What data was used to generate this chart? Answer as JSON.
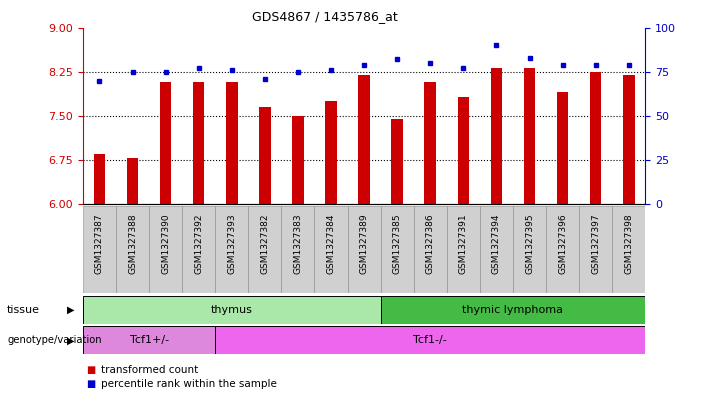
{
  "title": "GDS4867 / 1435786_at",
  "samples": [
    "GSM1327387",
    "GSM1327388",
    "GSM1327390",
    "GSM1327392",
    "GSM1327393",
    "GSM1327382",
    "GSM1327383",
    "GSM1327384",
    "GSM1327389",
    "GSM1327385",
    "GSM1327386",
    "GSM1327391",
    "GSM1327394",
    "GSM1327395",
    "GSM1327396",
    "GSM1327397",
    "GSM1327398"
  ],
  "bar_values": [
    6.85,
    6.78,
    8.07,
    8.08,
    8.08,
    7.65,
    7.5,
    7.75,
    8.2,
    7.45,
    8.08,
    7.82,
    8.32,
    8.32,
    7.9,
    8.25,
    8.2
  ],
  "dot_values": [
    70,
    75,
    75,
    77,
    76,
    71,
    75,
    76,
    79,
    82,
    80,
    77,
    90,
    83,
    79,
    79,
    79
  ],
  "ylim_left": [
    6.0,
    9.0
  ],
  "ylim_right": [
    0,
    100
  ],
  "yticks_left": [
    6.0,
    6.75,
    7.5,
    8.25,
    9.0
  ],
  "yticks_right": [
    0,
    25,
    50,
    75,
    100
  ],
  "dotted_line_values": [
    6.75,
    7.5,
    8.25
  ],
  "bar_color": "#cc0000",
  "dot_color": "#0000cc",
  "tick_color_left": "#cc0000",
  "tick_color_right": "#0000cc",
  "tissue_groups": [
    {
      "label": "thymus",
      "start": 0,
      "end": 9,
      "color": "#aae8aa"
    },
    {
      "label": "thymic lymphoma",
      "start": 9,
      "end": 17,
      "color": "#44bb44"
    }
  ],
  "genotype_groups": [
    {
      "label": "Tcf1+/-",
      "start": 0,
      "end": 4,
      "color": "#dd88dd"
    },
    {
      "label": "Tcf1-/-",
      "start": 4,
      "end": 17,
      "color": "#ee66ee"
    }
  ],
  "xtick_bg_color": "#d0d0d0",
  "xtick_border_color": "#888888"
}
